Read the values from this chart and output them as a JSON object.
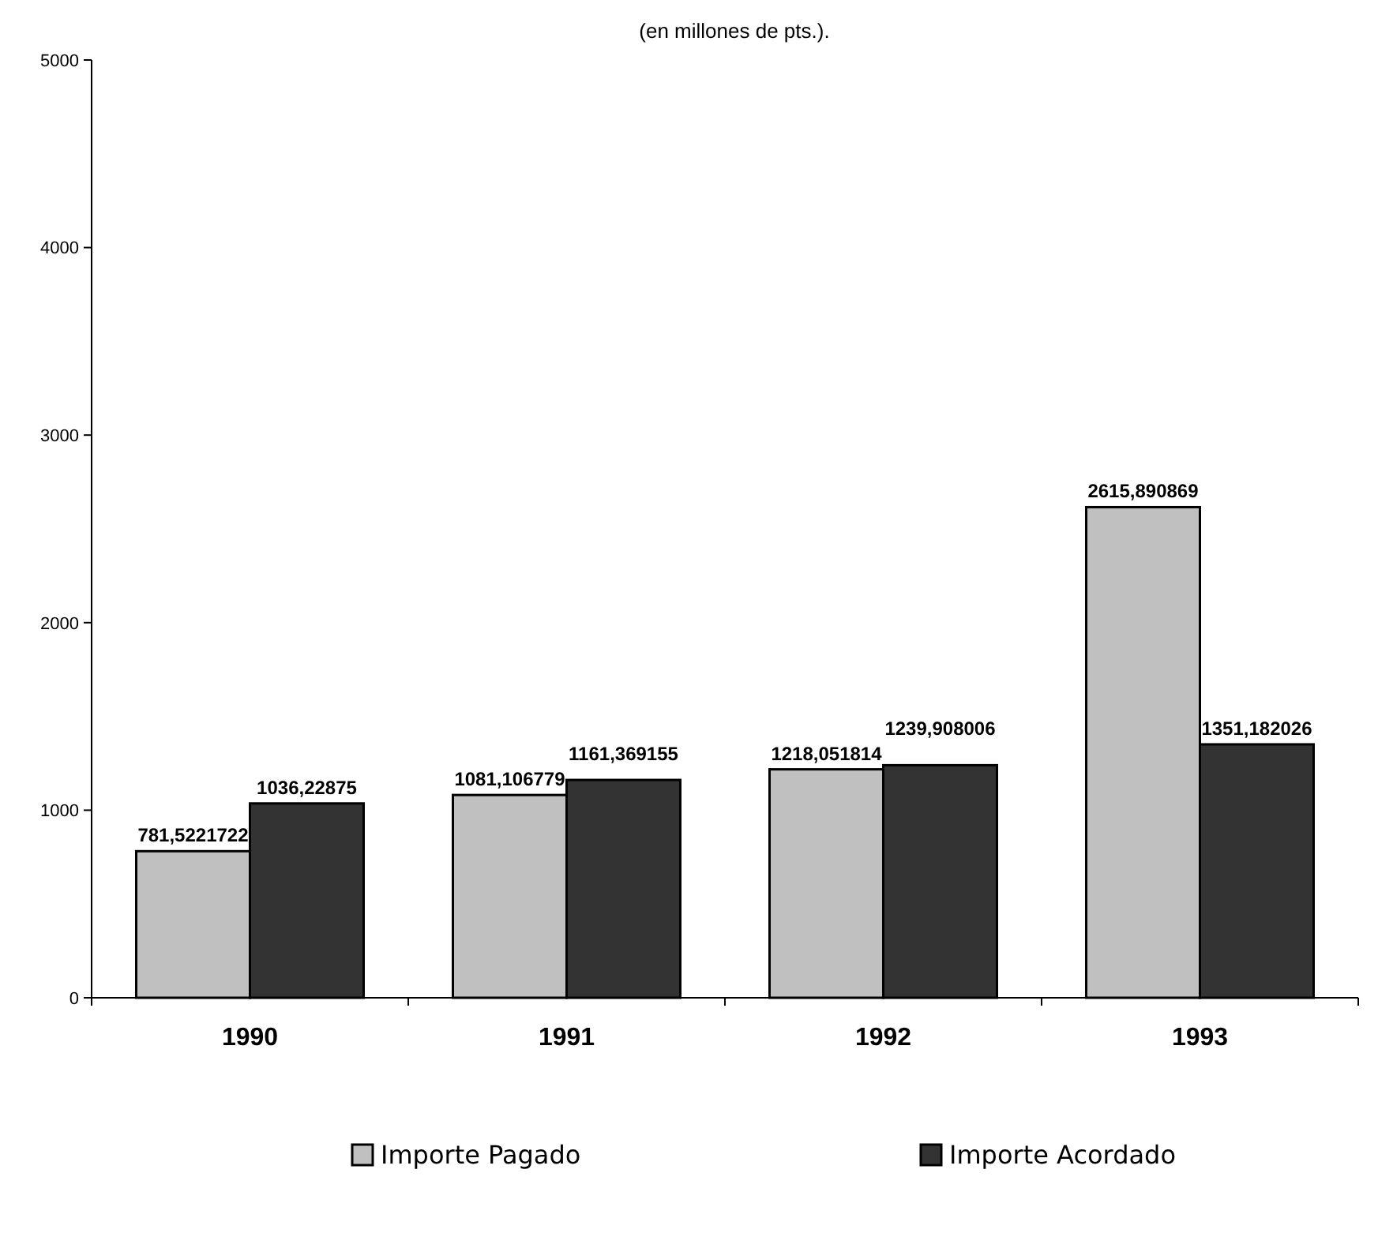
{
  "chart_data": {
    "type": "bar",
    "title": "(en  millones de pts.).",
    "categories": [
      "1990",
      "1991",
      "1992",
      "1993"
    ],
    "series": [
      {
        "name": "Importe Pagado",
        "color": "#c0c0c0",
        "values": [
          781.5221722,
          1081.106779,
          1218.051814,
          2615.890869
        ],
        "value_labels": [
          "781,5221722",
          "1081,106779",
          "1218,051814",
          "2615,890869"
        ]
      },
      {
        "name": "Importe Acordado",
        "color": "#333333",
        "values": [
          1036.22875,
          1161.369155,
          1239.908006,
          1351.182026
        ],
        "value_labels": [
          "1036,22875",
          "1161,369155",
          "1239,908006",
          "1351,182026"
        ]
      }
    ],
    "ylim": [
      0,
      5000
    ],
    "yticks": [
      0,
      1000,
      2000,
      3000,
      4000,
      5000
    ],
    "grid": false,
    "legend": "bottom"
  }
}
